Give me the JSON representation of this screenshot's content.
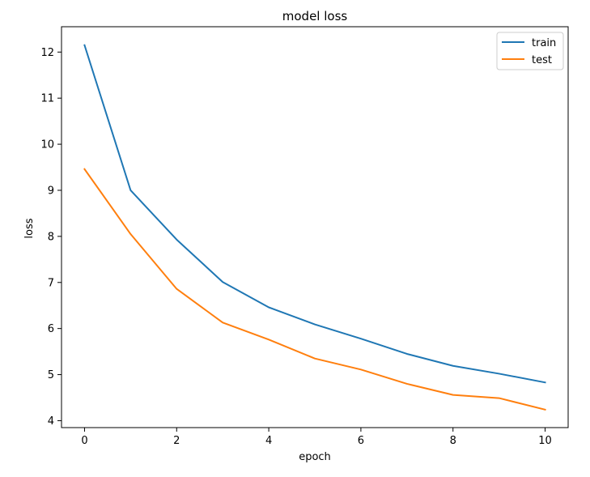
{
  "chart_data": {
    "type": "line",
    "title": "model loss",
    "xlabel": "epoch",
    "ylabel": "loss",
    "xlim": [
      -0.5,
      10.5
    ],
    "ylim": [
      3.85,
      12.55
    ],
    "xticks": [
      0,
      2,
      4,
      6,
      8,
      10
    ],
    "yticks": [
      4,
      5,
      6,
      7,
      8,
      9,
      10,
      11,
      12
    ],
    "grid": false,
    "legend": "top-right",
    "x": [
      0,
      1,
      2,
      3,
      4,
      5,
      6,
      7,
      8,
      9,
      10
    ],
    "series": [
      {
        "name": "train",
        "color": "#1f77b4",
        "values": [
          12.15,
          9.0,
          7.93,
          7.01,
          6.46,
          6.09,
          5.78,
          5.45,
          5.19,
          5.02,
          4.83
        ]
      },
      {
        "name": "test",
        "color": "#ff7f0e",
        "values": [
          9.46,
          8.05,
          6.86,
          6.13,
          5.76,
          5.35,
          5.11,
          4.8,
          4.56,
          4.49,
          4.24
        ]
      }
    ]
  }
}
